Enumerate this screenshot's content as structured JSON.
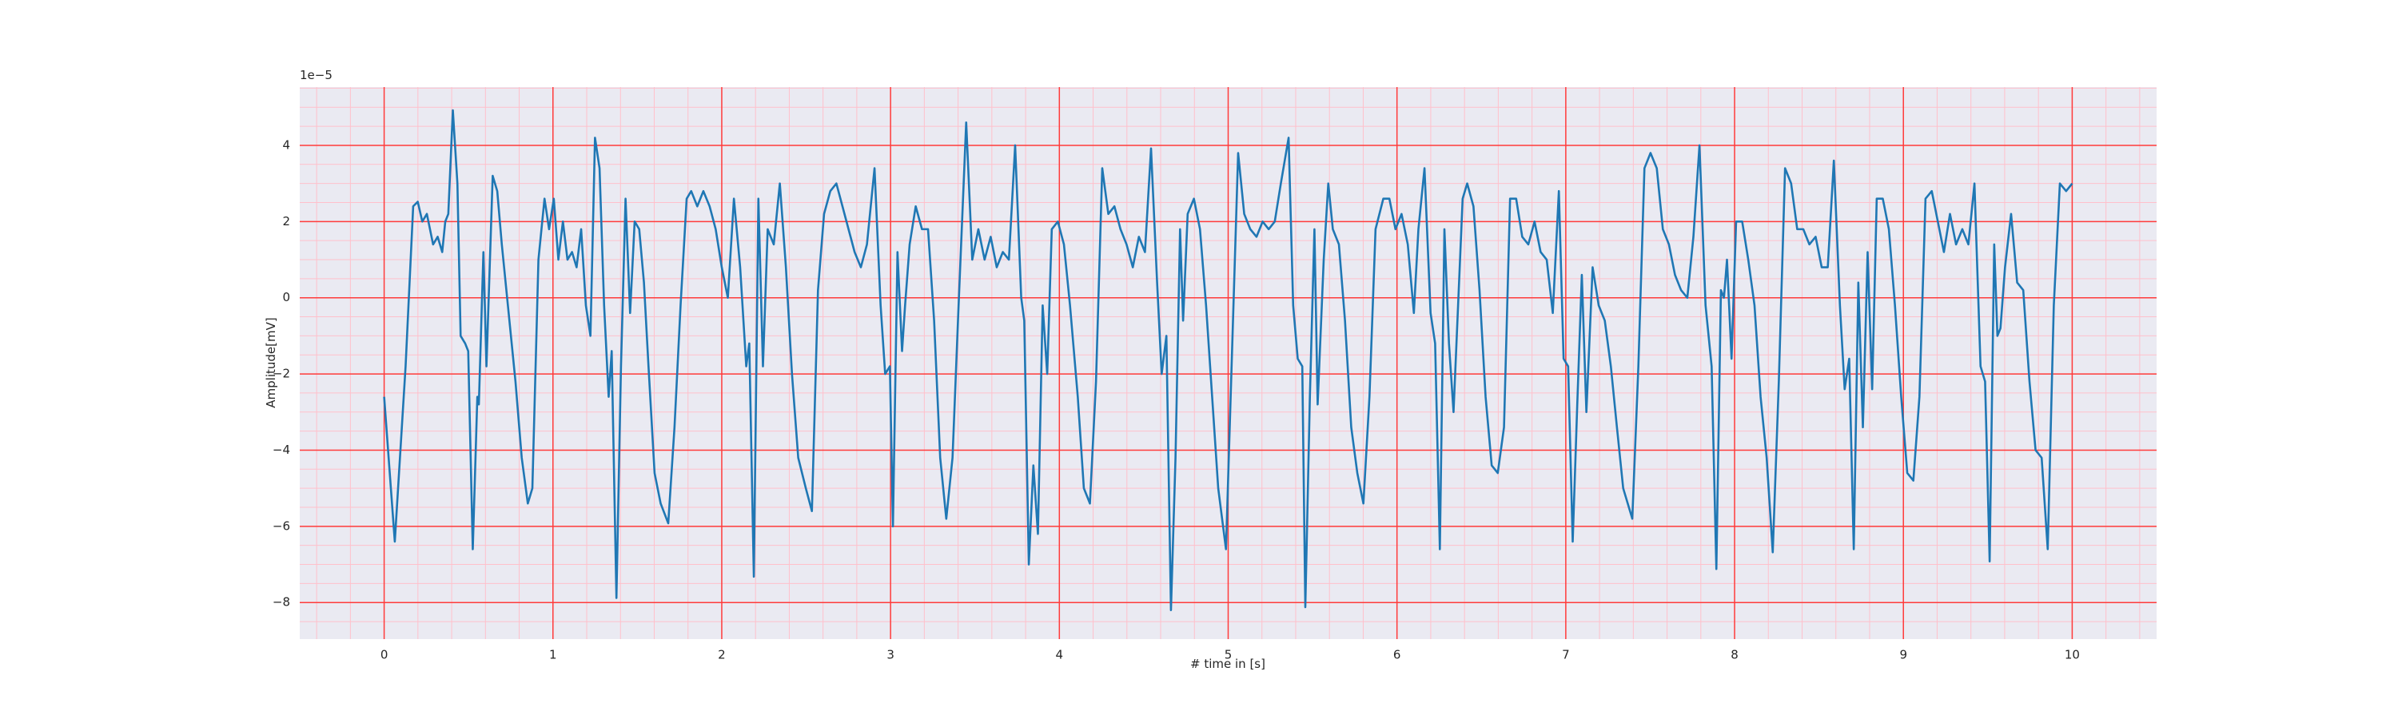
{
  "chart_data": {
    "type": "line",
    "xlabel": "# time in [s]",
    "ylabel": "Amplitude[mV]",
    "offset_text": "1e−5",
    "color": "#1f77b4",
    "grid": true,
    "major_grid_color": "#ff3b3b",
    "minor_grid_color": "#ffc0cb",
    "background": "#eaeaf2",
    "xlim": [
      -0.5,
      10.5
    ],
    "ylim": [
      -8.96,
      5.53
    ],
    "xticks": [
      0,
      1,
      2,
      3,
      4,
      5,
      6,
      7,
      8,
      9,
      10
    ],
    "yticks": [
      {
        "value": -8,
        "label": "−8"
      },
      {
        "value": -6,
        "label": "−6"
      },
      {
        "value": -4,
        "label": "−4"
      },
      {
        "value": -2,
        "label": "−2"
      },
      0,
      2,
      4
    ],
    "xminorticks": [
      -0.4,
      -0.2,
      0,
      0.2,
      0.4,
      0.6,
      0.8,
      1,
      1.2,
      1.4,
      1.6,
      1.8,
      2,
      2.2,
      2.4,
      2.6,
      2.8,
      3,
      3.2,
      3.4,
      3.6,
      3.8,
      4,
      4.2,
      4.4,
      4.6,
      4.8,
      5,
      5.2,
      5.4,
      5.6,
      5.8,
      6,
      6.2,
      6.4,
      6.6,
      6.8,
      7,
      7.2,
      7.4,
      7.6,
      7.8,
      8,
      8.2,
      8.4,
      8.6,
      8.8,
      9,
      9.2,
      9.4,
      9.6,
      9.8,
      10,
      10.2,
      10.4
    ],
    "yminorticks": [
      -8.5,
      -8,
      -7.5,
      -7,
      -6.5,
      -6,
      -5.5,
      -5,
      -4.5,
      -4,
      -3.5,
      -3,
      -2.5,
      -2,
      -1.5,
      -1,
      -0.5,
      0,
      0.5,
      1,
      1.5,
      2,
      2.5,
      3,
      3.5,
      4,
      4.5,
      5,
      5.5
    ],
    "x": [
      0,
      0.063,
      0.127,
      0.172,
      0.199,
      0.226,
      0.253,
      0.29,
      0.317,
      0.344,
      0.362,
      0.38,
      0.407,
      0.434,
      0.453,
      0.48,
      0.498,
      0.525,
      0.552,
      0.561,
      0.588,
      0.606,
      0.643,
      0.67,
      0.697,
      0.733,
      0.778,
      0.815,
      0.851,
      0.878,
      0.914,
      0.95,
      0.977,
      1.005,
      1.032,
      1.059,
      1.086,
      1.113,
      1.14,
      1.167,
      1.195,
      1.222,
      1.249,
      1.276,
      1.303,
      1.33,
      1.348,
      1.376,
      1.403,
      1.43,
      1.457,
      1.484,
      1.511,
      1.539,
      1.566,
      1.602,
      1.638,
      1.683,
      1.72,
      1.756,
      1.792,
      1.819,
      1.855,
      1.891,
      1.928,
      1.964,
      2.0,
      2.036,
      2.072,
      2.109,
      2.145,
      2.163,
      2.19,
      2.217,
      2.244,
      2.272,
      2.308,
      2.344,
      2.38,
      2.416,
      2.453,
      2.498,
      2.534,
      2.57,
      2.606,
      2.643,
      2.679,
      2.715,
      2.751,
      2.787,
      2.824,
      2.86,
      2.905,
      2.941,
      2.968,
      2.996,
      3.014,
      3.041,
      3.068,
      3.086,
      3.113,
      3.149,
      3.186,
      3.222,
      3.258,
      3.294,
      3.33,
      3.367,
      3.403,
      3.448,
      3.484,
      3.52,
      3.557,
      3.593,
      3.629,
      3.665,
      3.701,
      3.738,
      3.774,
      3.792,
      3.819,
      3.846,
      3.873,
      3.901,
      3.928,
      3.955,
      3.991,
      4.027,
      4.063,
      4.109,
      4.145,
      4.181,
      4.217,
      4.254,
      4.29,
      4.326,
      4.362,
      4.398,
      4.435,
      4.471,
      4.507,
      4.543,
      4.579,
      4.606,
      4.634,
      4.661,
      4.688,
      4.715,
      4.733,
      4.76,
      4.797,
      4.833,
      4.869,
      4.905,
      4.941,
      4.987,
      5.023,
      5.059,
      5.095,
      5.131,
      5.168,
      5.204,
      5.24,
      5.276,
      5.312,
      5.358,
      5.385,
      5.412,
      5.439,
      5.457,
      5.484,
      5.511,
      5.53,
      5.566,
      5.593,
      5.62,
      5.656,
      5.692,
      5.729,
      5.765,
      5.801,
      5.837,
      5.873,
      5.919,
      5.955,
      5.991,
      6.027,
      6.064,
      6.1,
      6.127,
      6.163,
      6.199,
      6.226,
      6.254,
      6.281,
      6.308,
      6.335,
      6.362,
      6.389,
      6.416,
      6.453,
      6.489,
      6.525,
      6.561,
      6.597,
      6.634,
      6.67,
      6.706,
      6.742,
      6.778,
      6.815,
      6.851,
      6.887,
      6.923,
      6.959,
      6.987,
      7.014,
      7.041,
      7.068,
      7.095,
      7.122,
      7.159,
      7.195,
      7.231,
      7.267,
      7.303,
      7.34,
      7.394,
      7.43,
      7.466,
      7.502,
      7.539,
      7.575,
      7.611,
      7.647,
      7.683,
      7.72,
      7.756,
      7.792,
      7.828,
      7.864,
      7.892,
      7.919,
      7.937,
      7.955,
      7.982,
      8.009,
      8.045,
      8.081,
      8.118,
      8.154,
      8.19,
      8.226,
      8.262,
      8.299,
      8.335,
      8.371,
      8.407,
      8.443,
      8.48,
      8.516,
      8.552,
      8.588,
      8.624,
      8.652,
      8.679,
      8.706,
      8.733,
      8.76,
      8.788,
      8.815,
      8.842,
      8.878,
      8.914,
      8.95,
      8.987,
      9.023,
      9.059,
      9.095,
      9.131,
      9.168,
      9.204,
      9.24,
      9.276,
      9.312,
      9.349,
      9.385,
      9.421,
      9.457,
      9.484,
      9.511,
      9.538,
      9.557,
      9.575,
      9.602,
      9.638,
      9.674,
      9.71,
      9.747,
      9.783,
      9.819,
      9.855,
      9.891,
      9.927,
      9.964,
      10.0
    ],
    "values": [
      -2.6,
      -6.4,
      -1.8,
      2.4,
      2.52,
      2.0,
      2.2,
      1.4,
      1.6,
      1.2,
      2.0,
      2.2,
      4.92,
      3.0,
      -1.0,
      -1.2,
      -1.4,
      -6.6,
      -2.6,
      -2.8,
      1.2,
      -1.8,
      3.2,
      2.8,
      1.4,
      -0.2,
      -2.2,
      -4.2,
      -5.4,
      -5.0,
      1.0,
      2.6,
      1.8,
      2.6,
      1.0,
      2.0,
      1.0,
      1.2,
      0.8,
      1.8,
      -0.2,
      -1.0,
      4.2,
      3.4,
      -0.2,
      -2.6,
      -1.4,
      -7.88,
      -1.8,
      2.6,
      -0.4,
      2.0,
      1.8,
      0.4,
      -1.8,
      -4.6,
      -5.4,
      -5.92,
      -3.4,
      -0.2,
      2.6,
      2.8,
      2.4,
      2.8,
      2.4,
      1.8,
      0.8,
      0.0,
      2.6,
      0.8,
      -1.8,
      -1.2,
      -7.32,
      2.6,
      -1.8,
      1.8,
      1.4,
      3.0,
      0.8,
      -2.0,
      -4.2,
      -5.0,
      -5.6,
      0.2,
      2.2,
      2.8,
      3.0,
      2.4,
      1.8,
      1.2,
      0.8,
      1.4,
      3.4,
      -0.2,
      -2.0,
      -1.8,
      -6.0,
      1.2,
      -1.4,
      -0.2,
      1.4,
      2.4,
      1.8,
      1.8,
      -0.6,
      -4.2,
      -5.8,
      -4.2,
      -0.2,
      4.6,
      1.0,
      1.8,
      1.0,
      1.6,
      0.8,
      1.2,
      1.0,
      4.0,
      0.0,
      -0.6,
      -7.0,
      -4.4,
      -6.2,
      -0.2,
      -2.0,
      1.8,
      2.0,
      1.4,
      -0.2,
      -2.6,
      -5.0,
      -5.4,
      -2.2,
      3.4,
      2.2,
      2.4,
      1.8,
      1.4,
      0.8,
      1.6,
      1.2,
      3.92,
      0.4,
      -2.0,
      -1.0,
      -8.2,
      -4.2,
      1.8,
      -0.6,
      2.2,
      2.6,
      1.8,
      -0.2,
      -2.6,
      -5.0,
      -6.6,
      -1.4,
      3.8,
      2.2,
      1.8,
      1.6,
      2.0,
      1.8,
      2.0,
      3.0,
      4.2,
      -0.2,
      -1.6,
      -1.8,
      -8.12,
      -2.6,
      1.8,
      -2.8,
      1.0,
      3.0,
      1.8,
      1.4,
      -0.6,
      -3.4,
      -4.6,
      -5.4,
      -2.6,
      1.8,
      2.6,
      2.6,
      1.8,
      2.2,
      1.4,
      -0.4,
      1.8,
      3.4,
      -0.4,
      -1.2,
      -6.6,
      1.8,
      -1.2,
      -3.0,
      -0.2,
      2.6,
      3.0,
      2.4,
      0.2,
      -2.6,
      -4.4,
      -4.6,
      -3.4,
      2.6,
      2.6,
      1.6,
      1.4,
      2.0,
      1.2,
      1.0,
      -0.4,
      2.8,
      -1.6,
      -1.8,
      -6.4,
      -2.8,
      0.6,
      -3.0,
      0.8,
      -0.2,
      -0.6,
      -1.8,
      -3.4,
      -5.0,
      -5.8,
      -1.8,
      3.4,
      3.8,
      3.4,
      1.8,
      1.4,
      0.6,
      0.2,
      0.0,
      1.6,
      4.0,
      -0.2,
      -1.8,
      -7.12,
      0.2,
      0.0,
      1.0,
      -1.6,
      2.0,
      2.0,
      1.0,
      -0.2,
      -2.6,
      -4.2,
      -6.68,
      -2.2,
      3.4,
      3.0,
      1.8,
      1.8,
      1.4,
      1.6,
      0.8,
      0.8,
      3.6,
      -0.2,
      -2.4,
      -1.6,
      -6.6,
      0.4,
      -3.4,
      1.2,
      -2.4,
      2.6,
      2.6,
      1.8,
      -0.2,
      -2.6,
      -4.6,
      -4.8,
      -2.6,
      2.6,
      2.8,
      2.0,
      1.2,
      2.2,
      1.4,
      1.8,
      1.4,
      3.0,
      -1.8,
      -2.2,
      -6.92,
      1.4,
      -1.0,
      -0.8,
      0.8,
      2.2,
      0.4,
      0.2,
      -2.2,
      -4.0,
      -4.2,
      -6.6,
      -0.2,
      3.0,
      2.8,
      3.0
    ]
  }
}
